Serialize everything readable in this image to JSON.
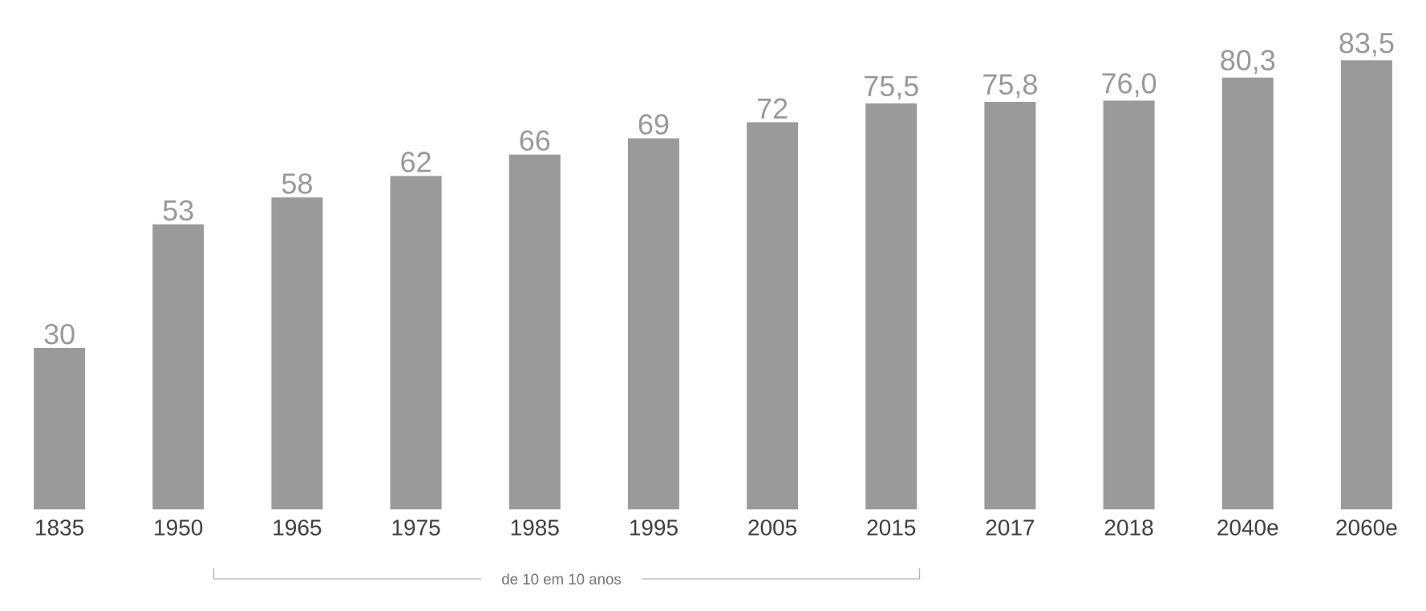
{
  "chart_data": {
    "type": "bar",
    "categories": [
      "1835",
      "1950",
      "1965",
      "1975",
      "1985",
      "1995",
      "2005",
      "2015",
      "2017",
      "2018",
      "2040e",
      "2060e"
    ],
    "values": [
      30,
      53,
      58,
      62,
      66,
      69,
      72,
      75.5,
      75.8,
      76.0,
      80.3,
      83.5
    ],
    "value_labels": [
      "30",
      "53",
      "58",
      "62",
      "66",
      "69",
      "72",
      "75,5",
      "75,8",
      "76,0",
      "80,3",
      "83,5"
    ],
    "color": "#9a9a9a",
    "annotations": [
      "de 10 em 10 anos"
    ]
  }
}
